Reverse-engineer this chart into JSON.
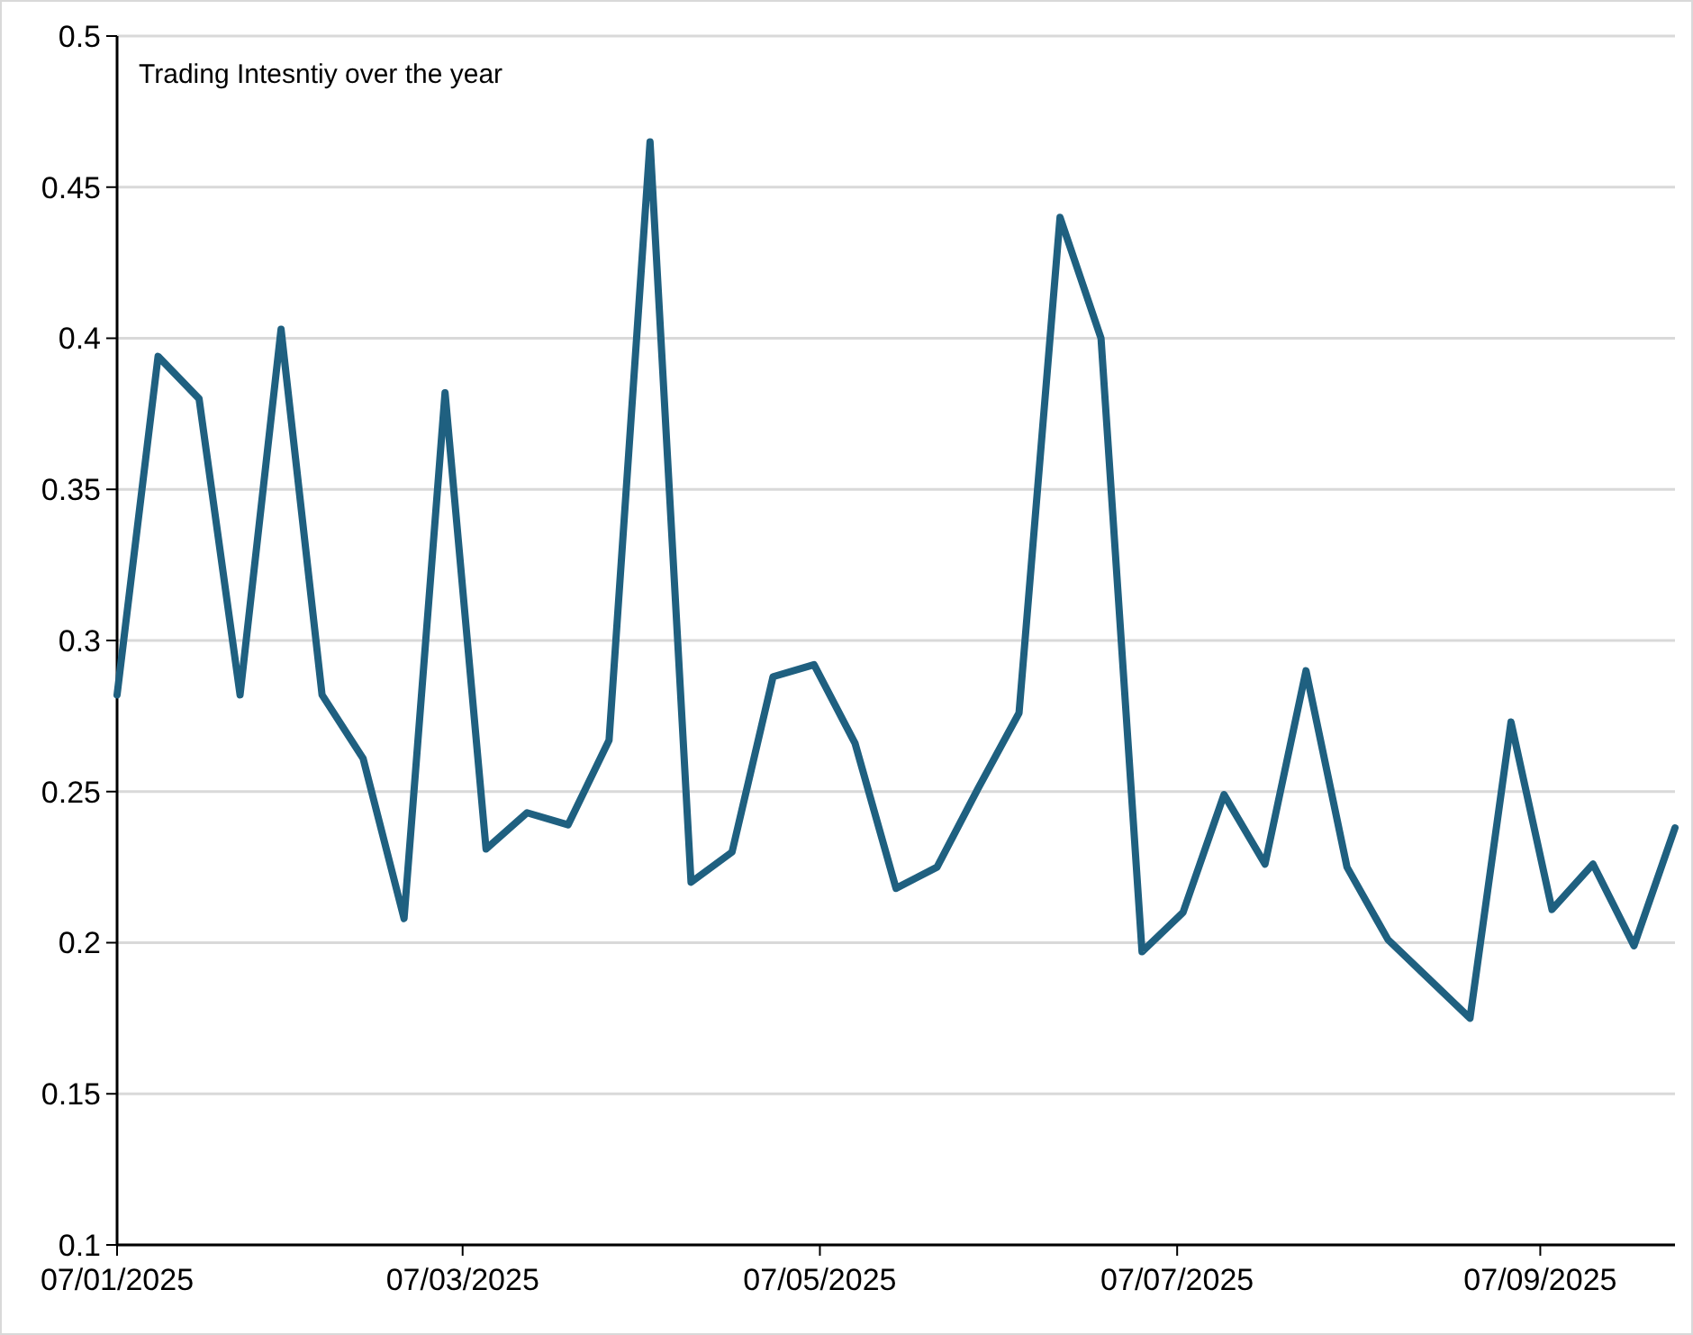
{
  "chart_data": {
    "type": "line",
    "title": "Trading Intesntiy over the year",
    "x": [
      "2025-01-07",
      "2025-01-14",
      "2025-01-21",
      "2025-01-28",
      "2025-02-04",
      "2025-02-11",
      "2025-02-18",
      "2025-02-25",
      "2025-03-04",
      "2025-03-11",
      "2025-03-18",
      "2025-03-25",
      "2025-04-01",
      "2025-04-08",
      "2025-04-15",
      "2025-04-22",
      "2025-04-29",
      "2025-05-06",
      "2025-05-13",
      "2025-05-20",
      "2025-05-27",
      "2025-06-03",
      "2025-06-10",
      "2025-06-17",
      "2025-06-24",
      "2025-07-01",
      "2025-07-08",
      "2025-07-15",
      "2025-07-22",
      "2025-07-29",
      "2025-08-05",
      "2025-08-12",
      "2025-08-19",
      "2025-08-26",
      "2025-09-02",
      "2025-09-09",
      "2025-09-16",
      "2025-09-23",
      "2025-09-30"
    ],
    "series": [
      {
        "color": "#1f6080",
        "values": [
          0.282,
          0.394,
          0.38,
          0.282,
          0.403,
          0.282,
          0.261,
          0.208,
          0.382,
          0.231,
          0.243,
          0.239,
          0.267,
          0.465,
          0.22,
          0.23,
          0.288,
          0.292,
          0.266,
          0.218,
          0.225,
          0.251,
          0.276,
          0.44,
          0.4,
          0.197,
          0.21,
          0.249,
          0.226,
          0.29,
          0.225,
          0.201,
          0.188,
          0.175,
          0.273,
          0.211,
          0.226,
          0.199,
          0.238
        ]
      }
    ],
    "xlim": [
      "2025-01-07",
      "2025-09-30"
    ],
    "xticks": [
      {
        "value": "2025-01-07",
        "label": "07/01/2025"
      },
      {
        "value": "2025-03-07",
        "label": "07/03/2025"
      },
      {
        "value": "2025-05-07",
        "label": "07/05/2025"
      },
      {
        "value": "2025-07-07",
        "label": "07/07/2025"
      },
      {
        "value": "2025-09-07",
        "label": "07/09/2025"
      }
    ],
    "ylim": [
      0.1,
      0.5
    ],
    "yticks": [
      0.1,
      0.15,
      0.2,
      0.25,
      0.3,
      0.35,
      0.4,
      0.45,
      0.5
    ],
    "grid": "y",
    "marker": "none",
    "line_style": "solid"
  }
}
